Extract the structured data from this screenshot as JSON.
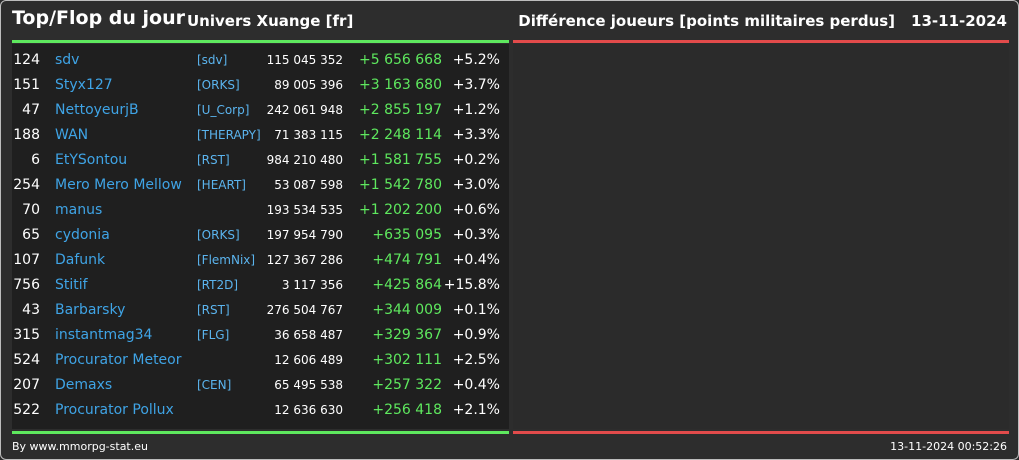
{
  "header": {
    "title": "Top/Flop du jour",
    "universe": "Univers Xuange [fr]",
    "metric": "Différence joueurs [points militaires perdus]",
    "date": "13-11-2024"
  },
  "colors": {
    "positive": "#5ee85e",
    "negative": "#e24b4b",
    "player": "#3fa4e6",
    "alliance": "#5bb4ee"
  },
  "rows": [
    {
      "rank": "124",
      "name": "sdv",
      "alliance": "[sdv]",
      "points": "115 045 352",
      "diff": "+5 656 668",
      "pct": "+5.2%"
    },
    {
      "rank": "151",
      "name": "Styx127",
      "alliance": "[ORKS]",
      "points": "89 005 396",
      "diff": "+3 163 680",
      "pct": "+3.7%"
    },
    {
      "rank": "47",
      "name": "NettoyeurjB",
      "alliance": "[U_Corp]",
      "points": "242 061 948",
      "diff": "+2 855 197",
      "pct": "+1.2%"
    },
    {
      "rank": "188",
      "name": "WAN",
      "alliance": "[THERAPY]",
      "points": "71 383 115",
      "diff": "+2 248 114",
      "pct": "+3.3%"
    },
    {
      "rank": "6",
      "name": "EtYSontou",
      "alliance": "[RST]",
      "points": "984 210 480",
      "diff": "+1 581 755",
      "pct": "+0.2%"
    },
    {
      "rank": "254",
      "name": "Mero Mero Mellow",
      "alliance": "[HEART]",
      "points": "53 087 598",
      "diff": "+1 542 780",
      "pct": "+3.0%"
    },
    {
      "rank": "70",
      "name": "manus",
      "alliance": "",
      "points": "193 534 535",
      "diff": "+1 202 200",
      "pct": "+0.6%"
    },
    {
      "rank": "65",
      "name": "cydonia",
      "alliance": "[ORKS]",
      "points": "197 954 790",
      "diff": "+635 095",
      "pct": "+0.3%"
    },
    {
      "rank": "107",
      "name": "Dafunk",
      "alliance": "[FlemNix]",
      "points": "127 367 286",
      "diff": "+474 791",
      "pct": "+0.4%"
    },
    {
      "rank": "756",
      "name": "Stitif",
      "alliance": "[RT2D]",
      "points": "3 117 356",
      "diff": "+425 864",
      "pct": "+15.8%"
    },
    {
      "rank": "43",
      "name": "Barbarsky",
      "alliance": "[RST]",
      "points": "276 504 767",
      "diff": "+344 009",
      "pct": "+0.1%"
    },
    {
      "rank": "315",
      "name": "instantmag34",
      "alliance": "[FLG]",
      "points": "36 658 487",
      "diff": "+329 367",
      "pct": "+0.9%"
    },
    {
      "rank": "524",
      "name": "Procurator Meteor",
      "alliance": "",
      "points": "12 606 489",
      "diff": "+302 111",
      "pct": "+2.5%"
    },
    {
      "rank": "207",
      "name": "Demaxs",
      "alliance": "[CEN]",
      "points": "65 495 538",
      "diff": "+257 322",
      "pct": "+0.4%"
    },
    {
      "rank": "522",
      "name": "Procurator Pollux",
      "alliance": "",
      "points": "12 636 630",
      "diff": "+256 418",
      "pct": "+2.1%"
    }
  ],
  "footer": {
    "credit": "By www.mmorpg-stat.eu",
    "timestamp": "13-11-2024 00:52:26"
  }
}
